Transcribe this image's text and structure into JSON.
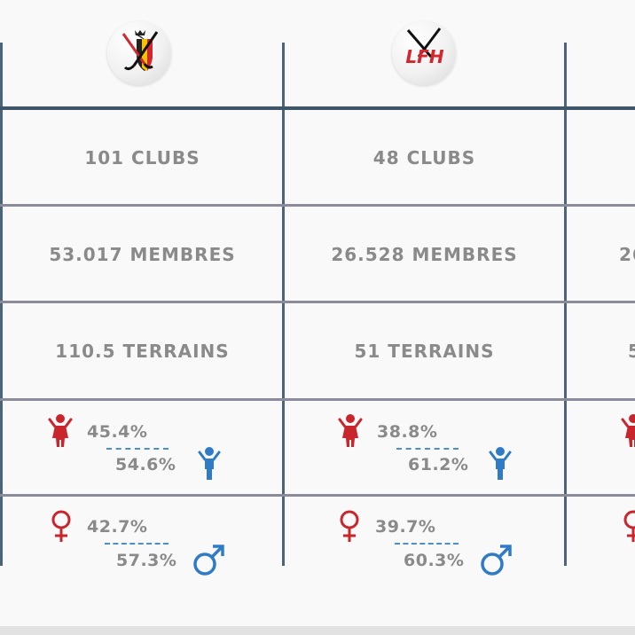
{
  "columns": [
    {
      "clubs": "101 CLUBS",
      "membres": "53.017 MEMBRES",
      "terrains": "110.5 TERRAINS",
      "female_members_pct": "45.4%",
      "male_members_pct": "54.6%",
      "female_symbol_pct": "42.7%",
      "male_symbol_pct": "57.3%"
    },
    {
      "logo_text": "LFH",
      "clubs": "48 CLUBS",
      "membres": "26.528 MEMBRES",
      "terrains": "51 TERRAINS",
      "female_members_pct": "38.8%",
      "male_members_pct": "61.2%",
      "female_symbol_pct": "39.7%",
      "male_symbol_pct": "60.3%"
    },
    {
      "membres_partial": "26"
    }
  ],
  "colors": {
    "female": "#c9252c",
    "male": "#2f7bc7",
    "text": "#8a8a8a",
    "vertical_lines": "#4b6478",
    "horizontal_lines": "#8b8c9a"
  },
  "icons": [
    "belgian-hockey-logo-icon",
    "lfh-logo-icon",
    "female-person-icon",
    "male-person-icon",
    "female-symbol-icon",
    "male-symbol-icon"
  ]
}
